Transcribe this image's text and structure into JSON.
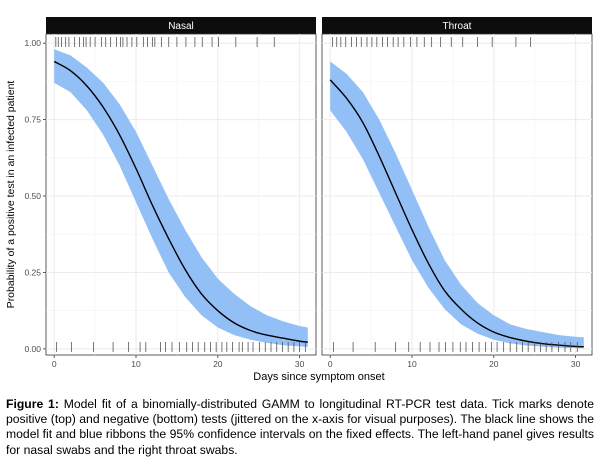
{
  "chart_data": [
    {
      "type": "line",
      "panel_title": "Nasal",
      "xlabel": "Days since symptom onset",
      "ylabel": "Probability of a positive test in an infected patient",
      "xlim": [
        -1,
        32
      ],
      "ylim": [
        -0.02,
        1.03
      ],
      "xticks": [
        "0",
        "10",
        "20",
        "30"
      ],
      "yticks": [
        "0.00",
        "0.25",
        "0.50",
        "0.75",
        "1.00"
      ],
      "grid": true,
      "series": [
        {
          "kind": "model fit",
          "x": [
            0,
            2,
            4,
            6,
            8,
            10,
            12,
            14,
            16,
            18,
            20,
            22,
            24,
            26,
            28,
            30,
            31
          ],
          "y": [
            0.94,
            0.91,
            0.86,
            0.79,
            0.7,
            0.59,
            0.47,
            0.36,
            0.26,
            0.18,
            0.125,
            0.085,
            0.06,
            0.045,
            0.035,
            0.025,
            0.022
          ]
        },
        {
          "kind": "95% confidence band",
          "x": [
            0,
            2,
            4,
            6,
            8,
            10,
            12,
            14,
            16,
            18,
            20,
            22,
            24,
            26,
            28,
            30,
            31
          ],
          "lower": [
            0.87,
            0.84,
            0.78,
            0.7,
            0.6,
            0.48,
            0.36,
            0.25,
            0.17,
            0.11,
            0.07,
            0.045,
            0.03,
            0.02,
            0.012,
            0.008,
            0.006
          ],
          "upper": [
            0.98,
            0.96,
            0.92,
            0.87,
            0.8,
            0.71,
            0.6,
            0.49,
            0.39,
            0.3,
            0.23,
            0.18,
            0.14,
            0.11,
            0.09,
            0.075,
            0.07
          ]
        }
      ],
      "positive_tests_x": [
        0.2,
        0.5,
        0.9,
        1.4,
        1.8,
        2.5,
        3.1,
        3.6,
        3.9,
        4.4,
        5.0,
        5.8,
        6.3,
        6.9,
        7.6,
        8.1,
        8.4,
        8.9,
        9.5,
        10.1,
        10.9,
        11.4,
        12.0,
        12.3,
        13.1,
        14.0,
        15.0,
        16.1,
        17.2,
        18.1,
        19.3,
        20.1,
        22.2,
        24.8,
        26.9
      ],
      "negative_tests_x": [
        0.3,
        2.1,
        4.8,
        7.2,
        9.1,
        10.5,
        11.2,
        13.0,
        13.6,
        14.4,
        15.3,
        16.2,
        16.9,
        17.6,
        18.4,
        19.1,
        19.8,
        20.5,
        21.1,
        21.8,
        22.6,
        23.0,
        23.7,
        24.3,
        25.1,
        25.8,
        26.5,
        27.2,
        27.9,
        28.6,
        29.3,
        30.0,
        30.7
      ]
    },
    {
      "type": "line",
      "panel_title": "Throat",
      "xlabel": "Days since symptom onset",
      "xlim": [
        -1,
        32
      ],
      "ylim": [
        -0.02,
        1.03
      ],
      "xticks": [
        "0",
        "10",
        "20",
        "30"
      ],
      "grid": true,
      "series": [
        {
          "kind": "model fit",
          "x": [
            0,
            2,
            4,
            6,
            8,
            10,
            12,
            14,
            16,
            18,
            20,
            22,
            24,
            26,
            28,
            30,
            31
          ],
          "y": [
            0.88,
            0.82,
            0.74,
            0.63,
            0.51,
            0.39,
            0.28,
            0.19,
            0.13,
            0.085,
            0.055,
            0.037,
            0.025,
            0.017,
            0.012,
            0.008,
            0.007
          ]
        },
        {
          "kind": "95% confidence band",
          "x": [
            0,
            2,
            4,
            6,
            8,
            10,
            12,
            14,
            16,
            18,
            20,
            22,
            24,
            26,
            28,
            30,
            31
          ],
          "lower": [
            0.78,
            0.71,
            0.62,
            0.51,
            0.4,
            0.29,
            0.2,
            0.13,
            0.08,
            0.05,
            0.03,
            0.018,
            0.011,
            0.007,
            0.004,
            0.003,
            0.002
          ],
          "upper": [
            0.94,
            0.9,
            0.84,
            0.75,
            0.64,
            0.52,
            0.4,
            0.29,
            0.21,
            0.15,
            0.11,
            0.08,
            0.065,
            0.055,
            0.045,
            0.04,
            0.038
          ]
        }
      ],
      "positive_tests_x": [
        0.3,
        0.8,
        1.3,
        1.9,
        2.6,
        3.2,
        3.8,
        4.5,
        5.1,
        5.7,
        6.4,
        7.0,
        7.7,
        8.3,
        9.0,
        9.8,
        10.6,
        11.5,
        12.4,
        13.5,
        14.8,
        16.2,
        18.0,
        19.8,
        22.7,
        24.5
      ],
      "negative_tests_x": [
        0.4,
        2.8,
        5.5,
        8.0,
        9.6,
        11.0,
        12.2,
        13.3,
        14.1,
        15.0,
        15.9,
        16.6,
        17.4,
        18.2,
        19.0,
        19.7,
        20.4,
        21.2,
        22.0,
        22.8,
        23.5,
        24.2,
        25.0,
        25.7,
        26.4,
        27.1,
        27.9,
        28.7,
        29.4,
        30.2
      ]
    }
  ],
  "caption": {
    "label": "Figure 1:",
    "text": " Model fit of a binomially-distributed GAMM to longitudinal RT-PCR test data. Tick marks denote positive (top) and negative (bottom) tests (jittered on the x-axis for visual purposes). The black line shows the model fit and blue ribbons the 95% confidence intervals on the fixed effects. The left-hand panel gives results for nasal swabs and the right throat swabs."
  },
  "colors": {
    "ribbon": "#93bff7",
    "fit_line": "#000000",
    "strip_background": "#0d0d0d",
    "strip_text": "#ffffff",
    "grid": "#ebebeb",
    "ticks": "#555555"
  }
}
